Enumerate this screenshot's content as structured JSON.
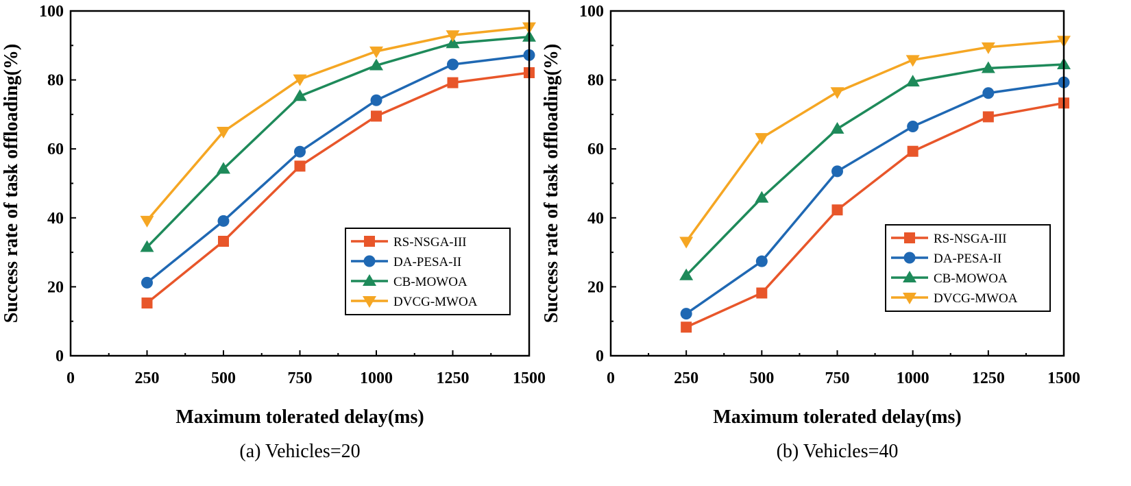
{
  "chart_data": [
    {
      "type": "line",
      "caption": "(a) Vehicles=20",
      "xlabel": "Maximum tolerated delay(ms)",
      "ylabel": "Success rate of task offloading(%)",
      "xlim": [
        0,
        1500
      ],
      "ylim": [
        0,
        100
      ],
      "xticks": [
        "0",
        "250",
        "500",
        "750",
        "1000",
        "1250",
        "1500"
      ],
      "yticks": [
        "0",
        "20",
        "40",
        "60",
        "80",
        "100"
      ],
      "x": [
        250,
        500,
        750,
        1000,
        1250,
        1500
      ],
      "legend_position": "lower-right",
      "series": [
        {
          "name": "RS-NSGA-III",
          "color": "#e8562a",
          "marker": "square",
          "values": [
            15.3,
            33.2,
            55.0,
            69.5,
            79.2,
            82.1
          ]
        },
        {
          "name": "DA-PESA-II",
          "color": "#1f68b3",
          "marker": "circle",
          "values": [
            21.2,
            39.1,
            59.2,
            74.1,
            84.5,
            87.2
          ]
        },
        {
          "name": "CB-MOWOA",
          "color": "#1e8a5a",
          "marker": "triangle-up",
          "values": [
            31.5,
            54.2,
            75.3,
            84.2,
            90.6,
            92.5
          ]
        },
        {
          "name": "DVCG-MWOA",
          "color": "#f5a623",
          "marker": "triangle-down",
          "values": [
            39.2,
            65.0,
            80.2,
            88.3,
            93.0,
            95.3
          ]
        }
      ]
    },
    {
      "type": "line",
      "caption": "(b) Vehicles=40",
      "xlabel": "Maximum tolerated delay(ms)",
      "ylabel": "Success rate of task offloading(%)",
      "xlim": [
        0,
        1500
      ],
      "ylim": [
        0,
        100
      ],
      "xticks": [
        "0",
        "250",
        "500",
        "750",
        "1000",
        "1250",
        "1500"
      ],
      "yticks": [
        "0",
        "20",
        "40",
        "60",
        "80",
        "100"
      ],
      "x": [
        250,
        500,
        750,
        1000,
        1250,
        1500
      ],
      "legend_position": "lower-right",
      "series": [
        {
          "name": "RS-NSGA-III",
          "color": "#e8562a",
          "marker": "square",
          "values": [
            8.3,
            18.2,
            42.3,
            59.3,
            69.3,
            73.3
          ]
        },
        {
          "name": "DA-PESA-II",
          "color": "#1f68b3",
          "marker": "circle",
          "values": [
            12.2,
            27.4,
            53.5,
            66.5,
            76.2,
            79.3
          ]
        },
        {
          "name": "CB-MOWOA",
          "color": "#1e8a5a",
          "marker": "triangle-up",
          "values": [
            23.3,
            45.8,
            65.8,
            79.5,
            83.4,
            84.5
          ]
        },
        {
          "name": "DVCG-MWOA",
          "color": "#f5a623",
          "marker": "triangle-down",
          "values": [
            33.1,
            63.2,
            76.5,
            85.8,
            89.5,
            91.4
          ]
        }
      ]
    }
  ]
}
